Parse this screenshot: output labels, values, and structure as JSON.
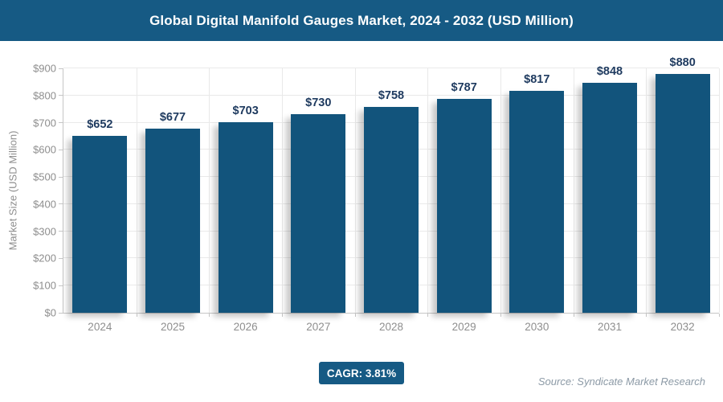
{
  "header": {
    "title": "Global Digital Manifold Gauges Market, 2024 - 2032 (USD Million)"
  },
  "chart_data": {
    "type": "bar",
    "title": "Global Digital Manifold Gauges Market, 2024 - 2032 (USD Million)",
    "categories": [
      "2024",
      "2025",
      "2026",
      "2027",
      "2028",
      "2029",
      "2030",
      "2031",
      "2032"
    ],
    "values": [
      652,
      677,
      703,
      730,
      758,
      787,
      817,
      848,
      880
    ],
    "value_labels": [
      "$652",
      "$677",
      "$703",
      "$730",
      "$758",
      "$787",
      "$817",
      "$848",
      "$880"
    ],
    "xlabel": "",
    "ylabel": "Market Size (USD Million)",
    "ylim": [
      0,
      900
    ],
    "ytick_step": 100,
    "ytick_labels": [
      "$0",
      "$100",
      "$200",
      "$300",
      "$400",
      "$500",
      "$600",
      "$700",
      "$800",
      "$900"
    ],
    "grid": true,
    "legend_position": "none"
  },
  "footer": {
    "cagr_label": "CAGR: 3.81%",
    "source": "Source: Syndicate Market Research"
  },
  "colors": {
    "header_bg": "#165A84",
    "bar": "#12547C",
    "badge_bg": "#165A84",
    "value_label": "#1E3A5F",
    "axis_text": "#8E8E8E",
    "gridline": "#E9E9E9",
    "axis_line": "#C6C6C6",
    "source_text": "#8C9AA6"
  }
}
